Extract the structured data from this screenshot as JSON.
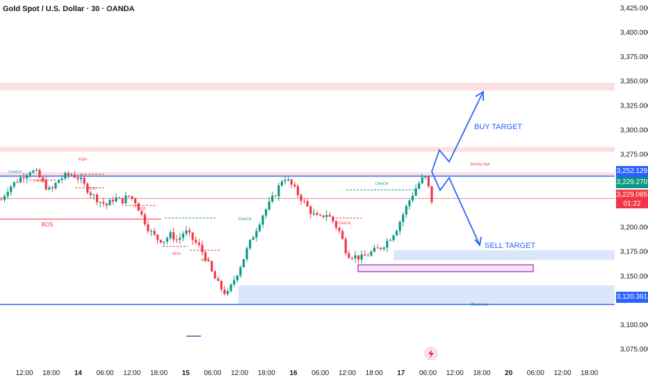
{
  "header": {
    "title": "Gold Spot / U.S. Dollar · 30 · OANDA"
  },
  "badges": {
    "strong_level": "3,252.129",
    "last_price": "3,229.270",
    "bid_price": "3,229.065",
    "countdown": "01:22",
    "weak_level": "3,120.361"
  },
  "annotations": {
    "buy_target": "BUY TARGET",
    "sell_target": "SELL TARGET",
    "strong_high": "Strong High",
    "weak_low": "Weak Low",
    "bos": "BOS",
    "choch": "CHoCH",
    "eqh": "EQH"
  },
  "colors": {
    "up": "#089981",
    "down": "#f23645",
    "blue_line": "#2962ff",
    "supply_zone": "#fbe0e0",
    "demand_zone": "#dbe6fb",
    "purple": "#9c27b0"
  },
  "chart_data": {
    "type": "candlestick",
    "title": "Gold Spot / U.S. Dollar · 30 · OANDA",
    "y_ticks": [
      "3,425.000",
      "3,400.000",
      "3,375.000",
      "3,350.000",
      "3,325.000",
      "3,300.000",
      "3,275.000",
      "3,250.000",
      "3,225.000",
      "3,200.000",
      "3,175.000",
      "3,150.000",
      "3,125.000",
      "3,100.000",
      "3,075.000"
    ],
    "y_tick_values": [
      3425,
      3400,
      3375,
      3350,
      3325,
      3300,
      3275,
      3250,
      3225,
      3200,
      3175,
      3150,
      3125,
      3100,
      3075
    ],
    "ylim": [
      3063,
      3432
    ],
    "x_ticks": [
      {
        "label": "12:00",
        "day": 0,
        "bold": false
      },
      {
        "label": "18:00",
        "day": 0,
        "bold": false
      },
      {
        "label": "14",
        "day": 0,
        "bold": true
      },
      {
        "label": "06:00",
        "day": 0,
        "bold": false
      },
      {
        "label": "12:00",
        "day": 0,
        "bold": false
      },
      {
        "label": "18:00",
        "day": 0,
        "bold": false
      },
      {
        "label": "15",
        "day": 0,
        "bold": true
      },
      {
        "label": "06:00",
        "day": 0,
        "bold": false
      },
      {
        "label": "12:00",
        "day": 0,
        "bold": false
      },
      {
        "label": "18:00",
        "day": 0,
        "bold": false
      },
      {
        "label": "16",
        "day": 0,
        "bold": true
      },
      {
        "label": "06:00",
        "day": 0,
        "bold": false
      },
      {
        "label": "12:00",
        "day": 0,
        "bold": false
      },
      {
        "label": "18:00",
        "day": 0,
        "bold": false
      },
      {
        "label": "17",
        "day": 0,
        "bold": true
      },
      {
        "label": "06:00",
        "day": 0,
        "bold": false
      },
      {
        "label": "12:00",
        "day": 0,
        "bold": false
      },
      {
        "label": "18:00",
        "day": 0,
        "bold": false
      },
      {
        "label": "20",
        "day": 0,
        "bold": true
      },
      {
        "label": "06:00",
        "day": 0,
        "bold": false
      },
      {
        "label": "12:00",
        "day": 0,
        "bold": false
      },
      {
        "label": "18:00",
        "day": 0,
        "bold": false
      }
    ],
    "levels": {
      "strong_high": 3252.129,
      "weak_low": 3120.361,
      "last": 3229.27,
      "bid": 3229.065,
      "bos_level": 3208
    },
    "zones": [
      {
        "kind": "supply",
        "from": 3340,
        "to": 3348
      },
      {
        "kind": "supply",
        "from": 3277,
        "to": 3282
      },
      {
        "kind": "supply",
        "from": 3252,
        "to": 3256
      },
      {
        "kind": "demand",
        "from": 3166,
        "to": 3176
      },
      {
        "kind": "demand",
        "from": 3121,
        "to": 3140
      },
      {
        "kind": "order_block",
        "from": 3154,
        "to": 3161
      }
    ],
    "close_path": [
      3228,
      3240,
      3246,
      3252,
      3258,
      3255,
      3244,
      3236,
      3248,
      3252,
      3254,
      3250,
      3240,
      3232,
      3226,
      3222,
      3230,
      3226,
      3232,
      3226,
      3210,
      3196,
      3188,
      3186,
      3192,
      3186,
      3196,
      3188,
      3180,
      3168,
      3150,
      3138,
      3130,
      3146,
      3162,
      3180,
      3196,
      3212,
      3224,
      3236,
      3252,
      3244,
      3234,
      3224,
      3214,
      3208,
      3214,
      3206,
      3194,
      3172,
      3170,
      3168,
      3172,
      3176,
      3180,
      3188,
      3198,
      3214,
      3230,
      3243,
      3252,
      3230
    ]
  }
}
